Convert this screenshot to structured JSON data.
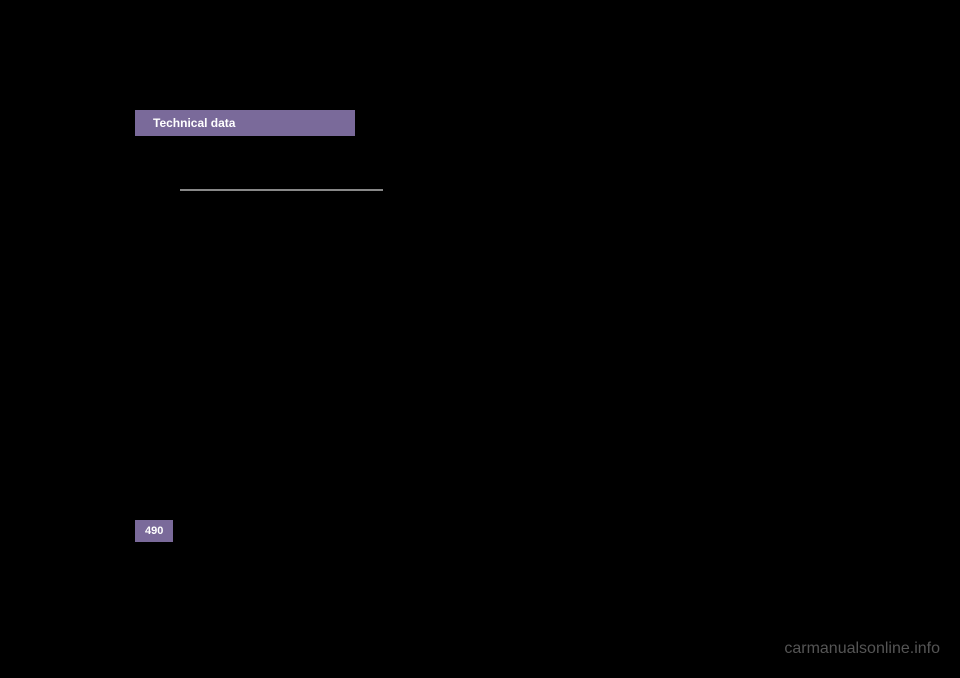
{
  "header": {
    "title": "Technical data",
    "bg_color": "#7a6a9a",
    "text_color": "#ffffff"
  },
  "divider": {
    "color": "#888888"
  },
  "page": {
    "number": "490",
    "bg_color": "#7a6a9a",
    "text_color": "#ffffff"
  },
  "watermark": {
    "text": "carmanualsonline.info",
    "color": "#555555"
  },
  "background_color": "#000000"
}
